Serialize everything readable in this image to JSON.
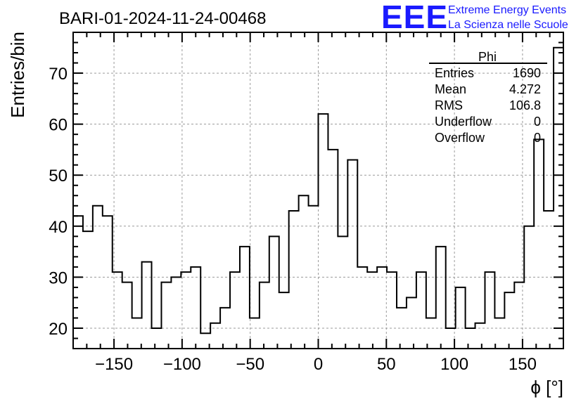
{
  "header": {
    "run_title": "BARI-01-2024-11-24-00468",
    "logo_text": "EEE",
    "project_line1": "Extreme Energy Events",
    "project_line2": "La Scienza nelle Scuole"
  },
  "colors": {
    "brand_blue": "#1a1aff",
    "grid": "#9a9a9a",
    "line": "#000000"
  },
  "stats": {
    "title": "Phi",
    "rows": [
      {
        "label": "Entries",
        "value": "1690"
      },
      {
        "label": "Mean",
        "value": "4.272"
      },
      {
        "label": "RMS",
        "value": "106.8"
      },
      {
        "label": "Underflow",
        "value": "0"
      },
      {
        "label": "Overflow",
        "value": "0"
      }
    ]
  },
  "chart_data": {
    "type": "bar",
    "style": "step-histogram",
    "title": "BARI-01-2024-11-24-00468",
    "xlabel": "ϕ [°]",
    "ylabel": "Entries/bin",
    "xlim": [
      -180,
      180
    ],
    "ylim": [
      16,
      78
    ],
    "bin_width": 7.2,
    "xticks": [
      -150,
      -100,
      -50,
      0,
      50,
      100,
      150
    ],
    "xtick_labels": [
      "−150",
      "−100",
      "−50",
      "0",
      "50",
      "100",
      "150"
    ],
    "yticks": [
      20,
      30,
      40,
      50,
      60,
      70
    ],
    "ytick_labels": [
      "20",
      "30",
      "40",
      "50",
      "60",
      "70"
    ],
    "grid": true,
    "values": [
      42,
      39,
      44,
      42,
      31,
      29,
      22,
      33,
      20,
      29,
      30,
      31,
      32,
      19,
      21,
      24,
      31,
      36,
      22,
      29,
      38,
      27,
      43,
      46,
      44,
      62,
      55,
      38,
      53,
      32,
      31,
      32,
      31,
      24,
      26,
      31,
      22,
      36,
      20,
      28,
      20,
      21,
      31,
      22,
      27,
      29,
      40,
      57,
      43,
      75
    ]
  }
}
